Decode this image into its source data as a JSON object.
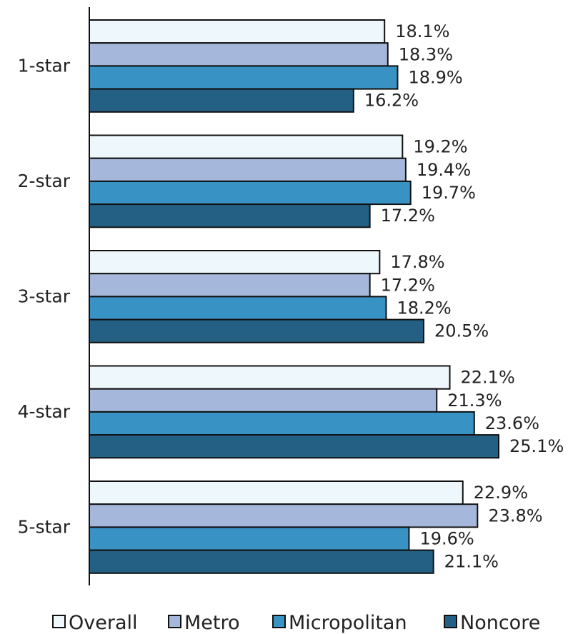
{
  "chart_data": {
    "type": "bar",
    "orientation": "horizontal",
    "categories": [
      "1-star",
      "2-star",
      "3-star",
      "4-star",
      "5-star"
    ],
    "series": [
      {
        "name": "Overall",
        "color": "#eef7fb",
        "values": [
          18.1,
          19.2,
          17.8,
          22.1,
          22.9
        ],
        "labels": [
          "18.1%",
          "19.2%",
          "17.8%",
          "22.1%",
          "22.9%"
        ]
      },
      {
        "name": "Metro",
        "color": "#a5b8db",
        "values": [
          18.3,
          19.4,
          17.2,
          21.3,
          23.8
        ],
        "labels": [
          "18.3%",
          "19.4%",
          "17.2%",
          "21.3%",
          "23.8%"
        ]
      },
      {
        "name": "Micropolitan",
        "color": "#3893c4",
        "values": [
          18.9,
          19.7,
          18.2,
          23.6,
          19.6
        ],
        "labels": [
          "18.9%",
          "19.7%",
          "18.2%",
          "23.6%",
          "19.6%"
        ]
      },
      {
        "name": "Noncore",
        "color": "#245f84",
        "values": [
          16.2,
          17.2,
          20.5,
          25.1,
          21.1
        ],
        "labels": [
          "16.2%",
          "17.2%",
          "20.5%",
          "25.1%",
          "21.1%"
        ]
      }
    ],
    "xlim": [
      0,
      25.1
    ],
    "grid": false,
    "legend_position": "bottom"
  }
}
